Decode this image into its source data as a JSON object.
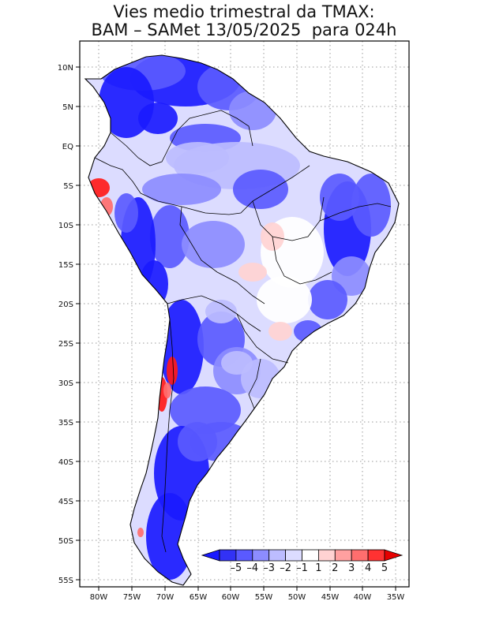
{
  "title": {
    "line1": "Vies medio trimestral da TMAX:",
    "line2": "BAM – SAMet 13/05/2025  para 024h"
  },
  "axes": {
    "lat_labels": [
      "10N",
      "5N",
      "EQ",
      "5S",
      "10S",
      "15S",
      "20S",
      "25S",
      "30S",
      "35S",
      "40S",
      "45S",
      "50S",
      "55S"
    ],
    "lon_labels": [
      "80W",
      "75W",
      "70W",
      "65W",
      "60W",
      "55W",
      "50W",
      "45W",
      "40W",
      "35W"
    ]
  },
  "colorbar": {
    "labels": [
      "–5",
      "–4",
      "–3",
      "–2",
      "–1",
      "1",
      "2",
      "3",
      "4",
      "5"
    ],
    "colors": [
      "#1a1aff",
      "#3232f5",
      "#5a5aff",
      "#8c8cff",
      "#bcbcff",
      "#dcdcff",
      "#ffffff",
      "#ffd2d2",
      "#ffa0a0",
      "#ff6e6e",
      "#ff3232",
      "#e60000"
    ]
  },
  "map_colors": {
    "land_base": "#dcdcff",
    "strong_neg": "#1a1aff",
    "neg": "#5a5aff",
    "mild_neg": "#8c8cff",
    "light_neg": "#bcbcff",
    "neutral": "#ffffff",
    "light_pos": "#ffd2d2",
    "pos": "#ff6e6e",
    "strong_pos": "#ff1a1a"
  }
}
